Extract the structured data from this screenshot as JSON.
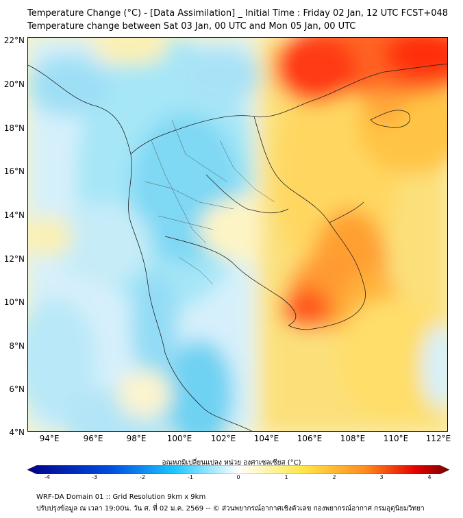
{
  "title": {
    "line1": "Temperature Change (°C) - [Data Assimilation] _ Initial Time : Friday 02 Jan, 12 UTC FCST+048",
    "line2": "Temperature change between Sat 03 Jan, 00 UTC and Mon 05 Jan, 00 UTC"
  },
  "map": {
    "lat_labels": [
      "22°N",
      "20°N",
      "18°N",
      "16°N",
      "14°N",
      "12°N",
      "10°N",
      "8°N",
      "6°N",
      "4°N"
    ],
    "lon_labels": [
      "94°E",
      "96°E",
      "98°E",
      "100°E",
      "102°E",
      "104°E",
      "106°E",
      "108°E",
      "110°E",
      "112°E"
    ],
    "lat_range": [
      4,
      22
    ],
    "lon_range": [
      93,
      112.5
    ],
    "regions": [
      {
        "name": "cool-thailand",
        "value": -1.2
      },
      {
        "name": "cool-andaman",
        "value": -1.0
      },
      {
        "name": "warm-vietnam-north",
        "value": 3.0
      },
      {
        "name": "warm-mekong-delta",
        "value": 2.6
      },
      {
        "name": "warm-central-vietnam",
        "value": 2.2
      },
      {
        "name": "warm-south-china-sea",
        "value": 1.5
      },
      {
        "name": "cool-malay-peninsula",
        "value": -1.3
      }
    ]
  },
  "colorbar": {
    "title": "อุณหภูมิเปลี่ยนแปลง หน่วย องศาเซลเซียส (°C)",
    "ticks": [
      "-4",
      "-3",
      "-2",
      "-1",
      "0",
      "1",
      "2",
      "3",
      "4"
    ],
    "colors": {
      "cold": "#00008b",
      "cool": "#1ec8ff",
      "neutral": "#ffffff",
      "warm": "#ffd23c",
      "hot": "#ff3c00",
      "extreme": "#7a0000"
    }
  },
  "footer": {
    "line1": "WRF-DA Domain 01 :: Grid Resolution 9km x 9km",
    "line2": "ปรับปรุงข้อมูล ณ เวลา 19:00น. วัน ศ. ที่ 02 ม.ค. 2569 -- © ส่วนพยากรณ์อากาศเชิงตัวเลข กองพยากรณ์อากาศ กรมอุตุนิยมวิทยา"
  }
}
